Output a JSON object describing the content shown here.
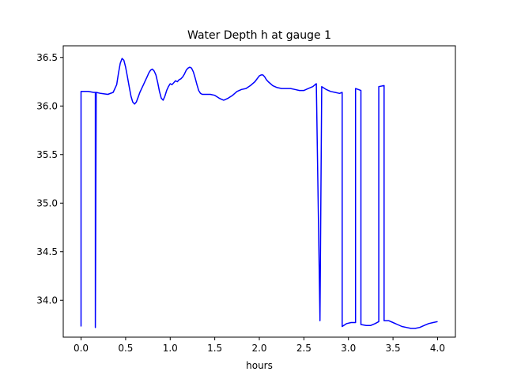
{
  "chart_data": {
    "type": "line",
    "title": "Water Depth h at gauge 1",
    "xlabel": "hours",
    "ylabel": "",
    "xlim": [
      -0.2,
      4.2
    ],
    "ylim": [
      33.62,
      36.62
    ],
    "x_ticks": [
      0.0,
      0.5,
      1.0,
      1.5,
      2.0,
      2.5,
      3.0,
      3.5,
      4.0
    ],
    "x_tick_labels": [
      "0.0",
      "0.5",
      "1.0",
      "1.5",
      "2.0",
      "2.5",
      "3.0",
      "3.5",
      "4.0"
    ],
    "y_ticks": [
      34.0,
      34.5,
      35.0,
      35.5,
      36.0,
      36.5
    ],
    "y_tick_labels": [
      "34.0",
      "34.5",
      "35.0",
      "35.5",
      "36.0",
      "36.5"
    ],
    "grid": false,
    "legend": "none",
    "series": [
      {
        "color": "#0000ff",
        "x": [
          0.0,
          0.0,
          0.02,
          0.08,
          0.14,
          0.16,
          0.16,
          0.16,
          0.16,
          0.17,
          0.22,
          0.3,
          0.36,
          0.4,
          0.42,
          0.44,
          0.46,
          0.48,
          0.5,
          0.52,
          0.54,
          0.56,
          0.58,
          0.6,
          0.62,
          0.64,
          0.66,
          0.68,
          0.7,
          0.72,
          0.74,
          0.76,
          0.78,
          0.8,
          0.82,
          0.84,
          0.86,
          0.88,
          0.9,
          0.92,
          0.94,
          0.96,
          0.98,
          1.0,
          1.02,
          1.04,
          1.06,
          1.08,
          1.1,
          1.12,
          1.14,
          1.16,
          1.18,
          1.2,
          1.22,
          1.24,
          1.26,
          1.28,
          1.3,
          1.32,
          1.34,
          1.36,
          1.38,
          1.4,
          1.45,
          1.5,
          1.55,
          1.6,
          1.65,
          1.7,
          1.75,
          1.8,
          1.85,
          1.9,
          1.95,
          2.0,
          2.02,
          2.04,
          2.06,
          2.08,
          2.1,
          2.15,
          2.2,
          2.25,
          2.3,
          2.35,
          2.4,
          2.45,
          2.5,
          2.55,
          2.6,
          2.64,
          2.64,
          2.68,
          2.68,
          2.7,
          2.75,
          2.8,
          2.85,
          2.9,
          2.93,
          2.93,
          2.98,
          3.03,
          3.08,
          3.08,
          3.14,
          3.14,
          3.2,
          3.25,
          3.3,
          3.34,
          3.34,
          3.4,
          3.4,
          3.45,
          3.5,
          3.55,
          3.6,
          3.65,
          3.7,
          3.75,
          3.8,
          3.85,
          3.9,
          3.95,
          4.0
        ],
        "values": [
          33.73,
          36.15,
          36.15,
          36.15,
          36.14,
          36.14,
          33.72,
          36.14,
          33.72,
          36.14,
          36.13,
          36.12,
          36.14,
          36.22,
          36.34,
          36.44,
          36.49,
          36.47,
          36.4,
          36.3,
          36.2,
          36.1,
          36.04,
          36.02,
          36.04,
          36.09,
          36.14,
          36.18,
          36.22,
          36.26,
          36.3,
          36.34,
          36.37,
          36.38,
          36.36,
          36.32,
          36.24,
          36.15,
          36.08,
          36.06,
          36.1,
          36.16,
          36.2,
          36.23,
          36.22,
          36.24,
          36.26,
          36.25,
          36.27,
          36.28,
          36.3,
          36.33,
          36.37,
          36.39,
          36.4,
          36.39,
          36.35,
          36.29,
          36.22,
          36.16,
          36.13,
          36.12,
          36.12,
          36.12,
          36.12,
          36.11,
          36.08,
          36.06,
          36.08,
          36.11,
          36.15,
          36.17,
          36.18,
          36.21,
          36.25,
          36.31,
          36.32,
          36.32,
          36.3,
          36.27,
          36.25,
          36.21,
          36.19,
          36.18,
          36.18,
          36.18,
          36.17,
          36.16,
          36.16,
          36.18,
          36.2,
          36.23,
          36.23,
          33.81,
          33.79,
          36.2,
          36.17,
          36.15,
          36.14,
          36.13,
          36.14,
          33.73,
          33.76,
          33.77,
          33.77,
          36.18,
          36.16,
          33.75,
          33.74,
          33.74,
          33.76,
          33.78,
          36.2,
          36.21,
          33.79,
          33.79,
          33.77,
          33.75,
          33.73,
          33.72,
          33.71,
          33.71,
          33.72,
          33.74,
          33.76,
          33.77,
          33.78
        ]
      }
    ]
  }
}
